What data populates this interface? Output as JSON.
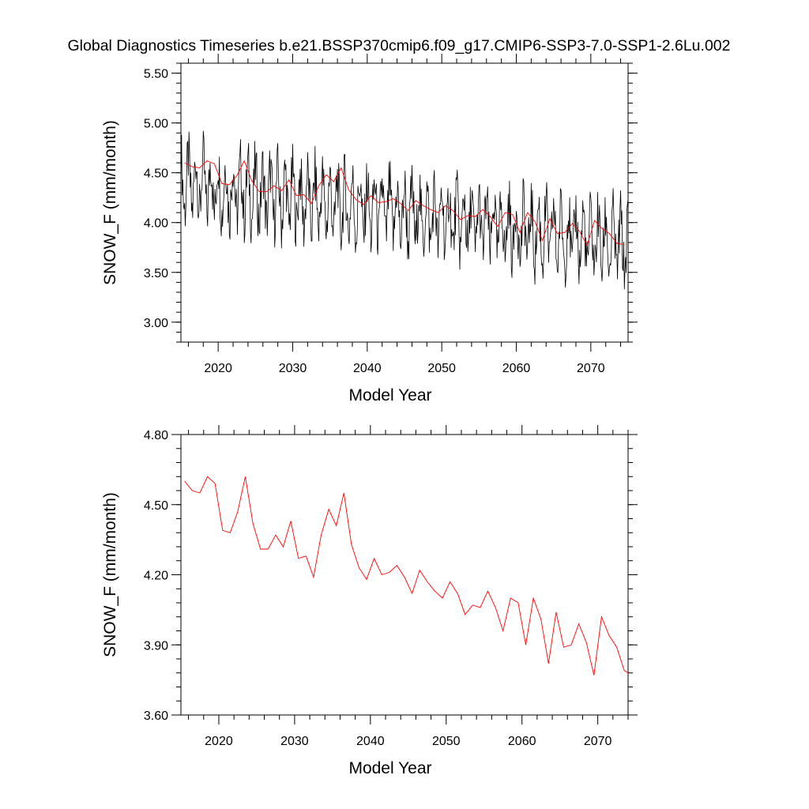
{
  "figure_title": "Global Diagnostics Timeseries b.e21.BSSP370cmip6.f09_g17.CMIP6-SSP3-7.0-SSP1-2.6Lu.002",
  "colors": {
    "monthly": "#000000",
    "annual": "#ff0000",
    "frame": "#000000"
  },
  "chart_data": [
    {
      "type": "line",
      "xlabel": "Model Year",
      "ylabel": "SNOW_F (mm/month)",
      "xlim": [
        2015,
        2075
      ],
      "ylim": [
        2.8,
        5.6
      ],
      "x_ticks": [
        2020,
        2030,
        2040,
        2050,
        2060,
        2070
      ],
      "x_tick_labels": [
        "2020",
        "2030",
        "2040",
        "2050",
        "2060",
        "2070"
      ],
      "y_ticks": [
        3.0,
        3.5,
        4.0,
        4.5,
        5.0,
        5.5
      ],
      "y_tick_labels": [
        "3.00",
        "3.50",
        "4.00",
        "4.50",
        "5.00",
        "5.50"
      ],
      "grid": false,
      "series": [
        {
          "color": "#000000",
          "kind": "monthly",
          "x_start": 2015.0,
          "x_step": 0.0833333,
          "cycle_base": 4.4,
          "cycle_amplitude": 0.45,
          "trend_per_year": -0.0105
        },
        {
          "color": "#ff0000",
          "kind": "annual",
          "x": [
            2015.5,
            2016.5,
            2017.5,
            2018.5,
            2019.5,
            2020.5,
            2021.5,
            2022.5,
            2023.5,
            2024.5,
            2025.5,
            2026.5,
            2027.5,
            2028.5,
            2029.5,
            2030.5,
            2031.5,
            2032.5,
            2033.5,
            2034.5,
            2035.5,
            2036.5,
            2037.5,
            2038.5,
            2039.5,
            2040.5,
            2041.5,
            2042.5,
            2043.5,
            2044.5,
            2045.5,
            2046.5,
            2047.5,
            2048.5,
            2049.5,
            2050.5,
            2051.5,
            2052.5,
            2053.5,
            2054.5,
            2055.5,
            2056.5,
            2057.5,
            2058.5,
            2059.5,
            2060.5,
            2061.5,
            2062.5,
            2063.5,
            2064.5,
            2065.5,
            2066.5,
            2067.5,
            2068.5,
            2069.5,
            2070.5,
            2071.5,
            2072.5,
            2073.5,
            2074.5
          ],
          "y": [
            4.6,
            4.56,
            4.55,
            4.62,
            4.59,
            4.39,
            4.38,
            4.47,
            4.62,
            4.42,
            4.31,
            4.31,
            4.37,
            4.32,
            4.43,
            4.27,
            4.28,
            4.19,
            4.37,
            4.48,
            4.41,
            4.55,
            4.33,
            4.23,
            4.18,
            4.27,
            4.2,
            4.21,
            4.24,
            4.19,
            4.12,
            4.22,
            4.17,
            4.13,
            4.1,
            4.17,
            4.12,
            4.03,
            4.07,
            4.06,
            4.13,
            4.06,
            3.96,
            4.1,
            4.08,
            3.9,
            4.1,
            4.01,
            3.82,
            4.04,
            3.89,
            3.9,
            3.99,
            3.91,
            3.77,
            4.02,
            3.94,
            3.89,
            3.79,
            3.78
          ]
        }
      ]
    },
    {
      "type": "line",
      "xlabel": "Model Year",
      "ylabel": "SNOW_F (mm/month)",
      "xlim": [
        2015,
        2074
      ],
      "ylim": [
        3.6,
        4.8
      ],
      "x_ticks": [
        2020,
        2030,
        2040,
        2050,
        2060,
        2070
      ],
      "x_tick_labels": [
        "2020",
        "2030",
        "2040",
        "2050",
        "2060",
        "2070"
      ],
      "y_ticks": [
        3.6,
        3.9,
        4.2,
        4.5,
        4.8
      ],
      "y_tick_labels": [
        "3.60",
        "3.90",
        "4.20",
        "4.50",
        "4.80"
      ],
      "grid": false,
      "series": [
        {
          "color": "#ff0000",
          "kind": "annual",
          "x": [
            2015.5,
            2016.5,
            2017.5,
            2018.5,
            2019.5,
            2020.5,
            2021.5,
            2022.5,
            2023.5,
            2024.5,
            2025.5,
            2026.5,
            2027.5,
            2028.5,
            2029.5,
            2030.5,
            2031.5,
            2032.5,
            2033.5,
            2034.5,
            2035.5,
            2036.5,
            2037.5,
            2038.5,
            2039.5,
            2040.5,
            2041.5,
            2042.5,
            2043.5,
            2044.5,
            2045.5,
            2046.5,
            2047.5,
            2048.5,
            2049.5,
            2050.5,
            2051.5,
            2052.5,
            2053.5,
            2054.5,
            2055.5,
            2056.5,
            2057.5,
            2058.5,
            2059.5,
            2060.5,
            2061.5,
            2062.5,
            2063.5,
            2064.5,
            2065.5,
            2066.5,
            2067.5,
            2068.5,
            2069.5,
            2070.5,
            2071.5,
            2072.5,
            2073.5,
            2074.0
          ],
          "y": [
            4.6,
            4.56,
            4.55,
            4.62,
            4.59,
            4.39,
            4.38,
            4.47,
            4.62,
            4.42,
            4.31,
            4.31,
            4.37,
            4.32,
            4.43,
            4.27,
            4.28,
            4.19,
            4.37,
            4.48,
            4.41,
            4.55,
            4.33,
            4.23,
            4.18,
            4.27,
            4.2,
            4.21,
            4.24,
            4.19,
            4.12,
            4.22,
            4.17,
            4.13,
            4.1,
            4.17,
            4.12,
            4.03,
            4.07,
            4.06,
            4.13,
            4.06,
            3.96,
            4.1,
            4.08,
            3.9,
            4.1,
            4.01,
            3.82,
            4.04,
            3.89,
            3.9,
            3.99,
            3.91,
            3.77,
            4.02,
            3.94,
            3.89,
            3.79,
            3.78
          ]
        }
      ]
    }
  ]
}
